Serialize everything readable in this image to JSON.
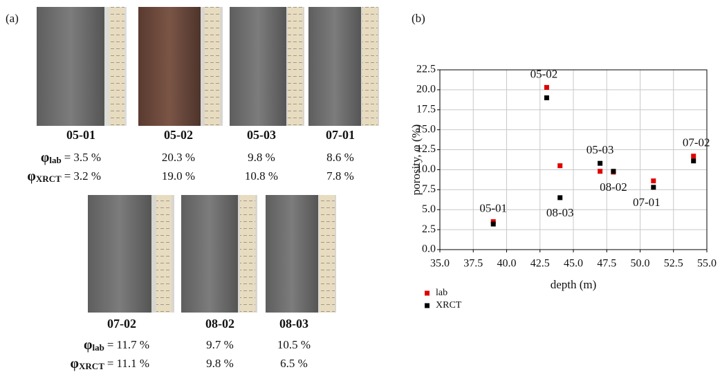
{
  "panel_a": {
    "label": "(a)",
    "symbol": "φ",
    "lab_subscript": "lab",
    "xrct_subscript": "XRCT",
    "equals": "=",
    "rows": [
      [
        {
          "name": "05-01",
          "lab": "3.5 %",
          "xrct": "3.2 %"
        },
        {
          "name": "05-02",
          "lab": "20.3 %",
          "xrct": "19.0 %"
        },
        {
          "name": "05-03",
          "lab": "9.8 %",
          "xrct": "10.8 %"
        },
        {
          "name": "07-01",
          "lab": "8.6 %",
          "xrct": "7.8 %"
        }
      ],
      [
        {
          "name": "07-02",
          "lab": "11.7 %",
          "xrct": "11.1 %"
        },
        {
          "name": "08-02",
          "lab": "9.7 %",
          "xrct": "9.8 %"
        },
        {
          "name": "08-03",
          "lab": "10.5 %",
          "xrct": "6.5 %"
        }
      ]
    ]
  },
  "chart_data": {
    "type": "scatter",
    "panel_label": "(b)",
    "x_label": "depth (m)",
    "y_label": "porosity, φ (%)",
    "x": [
      39,
      43,
      44,
      47,
      48,
      51,
      54
    ],
    "point_labels": [
      "05-01",
      "05-02",
      "08-03",
      "05-03",
      "08-02",
      "07-01",
      "07-02"
    ],
    "series": [
      {
        "name": "lab",
        "color": "#e00000",
        "values": [
          3.5,
          20.3,
          10.5,
          9.8,
          9.7,
          8.6,
          11.7
        ]
      },
      {
        "name": "XRCT",
        "color": "#000000",
        "values": [
          3.2,
          19.0,
          6.5,
          10.8,
          9.8,
          7.8,
          11.1
        ]
      }
    ],
    "xlim": [
      35,
      55
    ],
    "ylim": [
      0,
      22.5
    ],
    "xticks": [
      {
        "value": 35,
        "label": "35.0"
      },
      {
        "value": 37.5,
        "label": "37.5"
      },
      {
        "value": 40,
        "label": "40.0"
      },
      {
        "value": 42.5,
        "label": "42.5"
      },
      {
        "value": 45,
        "label": "45.0"
      },
      {
        "value": 47.5,
        "label": "47.5"
      },
      {
        "value": 50,
        "label": "50.0"
      },
      {
        "value": 52.5,
        "label": "52.5"
      },
      {
        "value": 55,
        "label": "55.0"
      }
    ],
    "yticks": [
      {
        "value": 0,
        "label": "0.0"
      },
      {
        "value": 2.5,
        "label": "2.5"
      },
      {
        "value": 5,
        "label": "5.0"
      },
      {
        "value": 7.5,
        "label": "7.5"
      },
      {
        "value": 10,
        "label": "10.0"
      },
      {
        "value": 12.5,
        "label": "12.5"
      },
      {
        "value": 15,
        "label": "15.0"
      },
      {
        "value": 17.5,
        "label": "17.5"
      },
      {
        "value": 20,
        "label": "20.0"
      },
      {
        "value": 22.5,
        "label": "22.5"
      }
    ],
    "grid": true,
    "legend": "below-left"
  }
}
